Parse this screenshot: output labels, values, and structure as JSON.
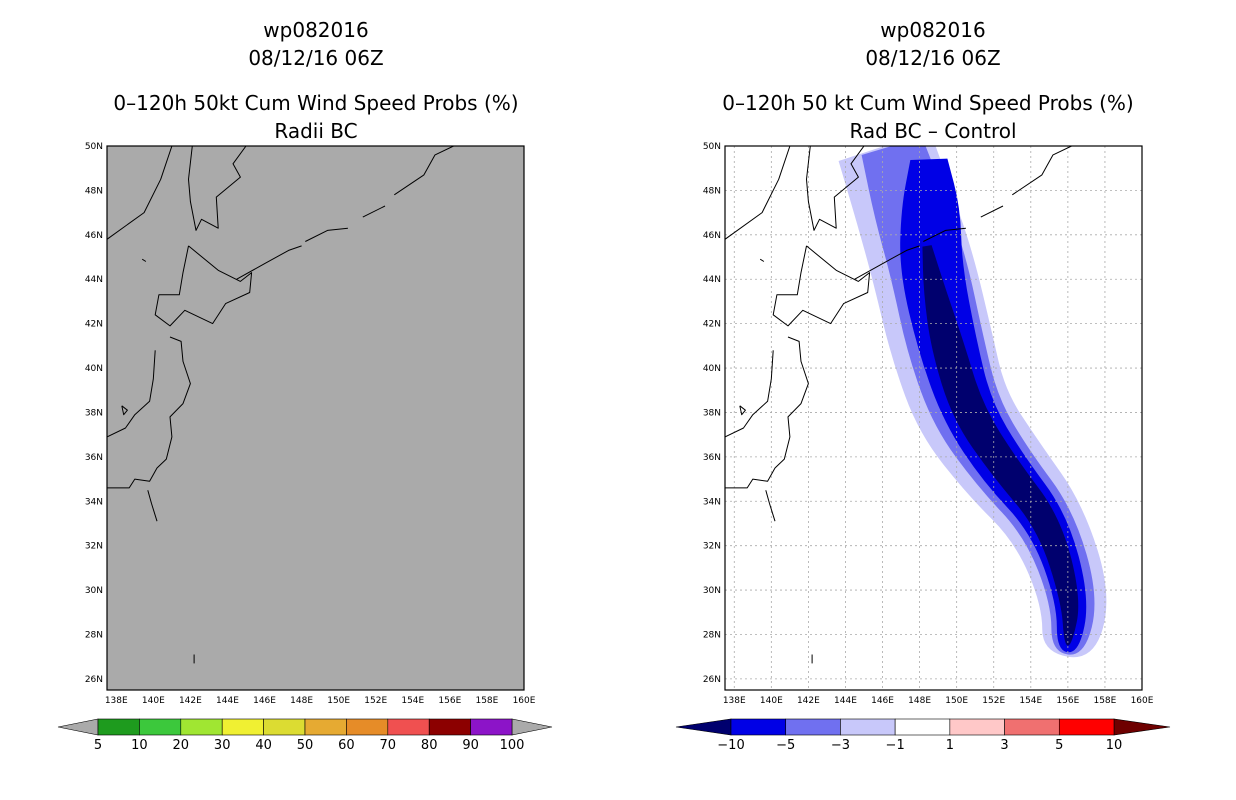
{
  "chart_data": [
    {
      "type": "heatmap",
      "storm_id": "wp082016",
      "datetime": "08/12/16 06Z",
      "title": "0–120h 50kt Cum Wind Speed Probs (%)",
      "subtitle": "Radii BC",
      "x_ticks": [
        "138E",
        "140E",
        "142E",
        "144E",
        "146E",
        "148E",
        "150E",
        "152E",
        "154E",
        "156E",
        "158E",
        "160E"
      ],
      "y_ticks": [
        "26N",
        "28N",
        "30N",
        "32N",
        "34N",
        "36N",
        "38N",
        "40N",
        "42N",
        "44N",
        "46N",
        "48N",
        "50N"
      ],
      "xlim": [
        137.5,
        160
      ],
      "ylim": [
        25.5,
        50
      ],
      "grid": false,
      "background_color": "#aaaaaa",
      "colorbar": {
        "labels": [
          "5",
          "10",
          "20",
          "30",
          "40",
          "50",
          "60",
          "70",
          "80",
          "90",
          "100"
        ],
        "colors": [
          "#1e9b1e",
          "#3cc83c",
          "#a0e632",
          "#f0f032",
          "#dcdc32",
          "#e6aa32",
          "#e68c28",
          "#f05050",
          "#8c0000",
          "#8c14c8"
        ],
        "end_colors": [
          "#aaaaaa",
          "#aaaaaa"
        ]
      },
      "values": []
    },
    {
      "type": "heatmap",
      "storm_id": "wp082016",
      "datetime": "08/12/16 06Z",
      "title": "0–120h 50 kt Cum Wind Speed Probs (%)",
      "subtitle": "Rad BC – Control",
      "x_ticks": [
        "138E",
        "140E",
        "142E",
        "144E",
        "146E",
        "148E",
        "150E",
        "152E",
        "154E",
        "156E",
        "158E",
        "160E"
      ],
      "y_ticks": [
        "26N",
        "28N",
        "30N",
        "32N",
        "34N",
        "36N",
        "38N",
        "40N",
        "42N",
        "44N",
        "46N",
        "48N",
        "50N"
      ],
      "xlim": [
        137.5,
        160
      ],
      "ylim": [
        25.5,
        50
      ],
      "grid": true,
      "colorbar": {
        "labels": [
          "−10",
          "−5",
          "−3",
          "−1",
          "1",
          "3",
          "5",
          "10"
        ],
        "colors": [
          "#0000e6",
          "#7070f0",
          "#c8c8fa",
          "#ffffff",
          "#ffc8c8",
          "#f07070",
          "#ff0000"
        ],
        "end_colors": [
          "#00006e",
          "#6e0000"
        ]
      },
      "contour_levels": [
        {
          "level": -1,
          "color": "#c8c8fa",
          "track": [
            [
              146.1,
              50
            ],
            [
              147.2,
              47.2
            ],
            [
              148.2,
              44.5
            ],
            [
              149.2,
              41
            ],
            [
              150.3,
              38
            ],
            [
              152.5,
              35.5
            ],
            [
              155,
              33
            ],
            [
              156.5,
              29.5
            ],
            [
              156,
              27
            ]
          ],
          "width": [
            2.6,
            2.7,
            2.8,
            2.8,
            2.6,
            2.4,
            2.1,
            1.9,
            1.4
          ]
        },
        {
          "level": -3,
          "color": "#7070f0",
          "track": [
            [
              146.5,
              50
            ],
            [
              147.5,
              47.2
            ],
            [
              148.5,
              44.5
            ],
            [
              149.4,
              41
            ],
            [
              150.5,
              38
            ],
            [
              152.5,
              35.5
            ],
            [
              155,
              33
            ],
            [
              156.4,
              29.5
            ],
            [
              156,
              27.1
            ]
          ],
          "width": [
            1.7,
            2.0,
            2.1,
            2.1,
            1.9,
            1.7,
            1.5,
            1.3,
            0.9
          ]
        },
        {
          "level": -5,
          "color": "#0000e6",
          "track": [
            [
              148.5,
              49.4
            ],
            [
              148.6,
              47.2
            ],
            [
              148.6,
              44.5
            ],
            [
              149.5,
              41
            ],
            [
              150.6,
              38
            ],
            [
              152.5,
              35.5
            ],
            [
              155,
              33
            ],
            [
              156.3,
              29.5
            ],
            [
              156,
              27.2
            ]
          ],
          "width": [
            1.0,
            1.6,
            1.7,
            1.6,
            1.4,
            1.3,
            1.1,
            0.9,
            0.6
          ]
        },
        {
          "level": -10,
          "color": "#00006e",
          "track": [
            [
              148.4,
              45.5
            ],
            [
              148.8,
              43.5
            ],
            [
              149.5,
              41
            ],
            [
              150.6,
              38
            ],
            [
              152.6,
              35.5
            ],
            [
              155,
              33
            ],
            [
              156.2,
              29.5
            ],
            [
              156,
              27.5
            ]
          ],
          "width": [
            0.25,
            0.6,
            0.9,
            0.9,
            0.8,
            0.7,
            0.55,
            0.2
          ]
        }
      ]
    }
  ],
  "coastlines": [
    [
      [
        137.5,
        45.8
      ],
      [
        139.5,
        47
      ],
      [
        140.4,
        48.5
      ],
      [
        141,
        50
      ]
    ],
    [
      [
        142.1,
        50
      ],
      [
        141.9,
        48.5
      ],
      [
        142,
        47.5
      ],
      [
        142.3,
        46.2
      ],
      [
        142.6,
        46.7
      ],
      [
        143.5,
        46.3
      ],
      [
        143.4,
        47.7
      ],
      [
        144.7,
        48.6
      ],
      [
        144.3,
        49.2
      ],
      [
        145,
        50
      ]
    ],
    [
      [
        141.9,
        45.5
      ],
      [
        143.5,
        44.4
      ],
      [
        144.7,
        43.9
      ],
      [
        145.3,
        44.3
      ],
      [
        145.2,
        43.4
      ],
      [
        143.9,
        42.9
      ],
      [
        143.2,
        42
      ],
      [
        141.7,
        42.6
      ],
      [
        140.9,
        41.9
      ],
      [
        140.1,
        42.4
      ],
      [
        140.3,
        43.3
      ],
      [
        141.4,
        43.3
      ],
      [
        141.6,
        44.3
      ],
      [
        141.9,
        45.5
      ]
    ],
    [
      [
        140.9,
        41.4
      ],
      [
        141.5,
        41.2
      ],
      [
        141.6,
        40.3
      ],
      [
        142,
        39.3
      ],
      [
        141.6,
        38.4
      ],
      [
        140.9,
        37.8
      ],
      [
        141,
        36.9
      ],
      [
        140.7,
        35.9
      ],
      [
        140.2,
        35.5
      ],
      [
        139.8,
        34.9
      ],
      [
        139,
        35
      ],
      [
        138.7,
        34.6
      ],
      [
        137.7,
        34.6
      ],
      [
        137.5,
        34.6
      ]
    ],
    [
      [
        140.1,
        40.8
      ],
      [
        140,
        39.5
      ],
      [
        139.8,
        38.5
      ],
      [
        139,
        37.9
      ],
      [
        138.5,
        37.3
      ],
      [
        137.5,
        36.9
      ]
    ],
    [
      [
        144.5,
        44
      ],
      [
        146,
        44.7
      ],
      [
        147.3,
        45.3
      ],
      [
        148,
        45.5
      ]
    ],
    [
      [
        148.2,
        45.7
      ],
      [
        149.4,
        46.2
      ],
      [
        150.5,
        46.3
      ]
    ],
    [
      [
        151.3,
        46.8
      ],
      [
        152.5,
        47.3
      ]
    ],
    [
      [
        153,
        47.8
      ],
      [
        154.6,
        48.7
      ],
      [
        155.2,
        49.6
      ],
      [
        156.2,
        50
      ]
    ],
    [
      [
        138.3,
        38.3
      ],
      [
        138.6,
        38.1
      ],
      [
        138.4,
        37.9
      ],
      [
        138.3,
        38.3
      ]
    ],
    [
      [
        139.4,
        44.9
      ],
      [
        139.6,
        44.8
      ]
    ],
    [
      [
        142.2,
        27.1
      ],
      [
        142.2,
        26.7
      ]
    ],
    [
      [
        139.7,
        34.5
      ],
      [
        139.9,
        33.9
      ],
      [
        140.2,
        33.1
      ]
    ]
  ]
}
